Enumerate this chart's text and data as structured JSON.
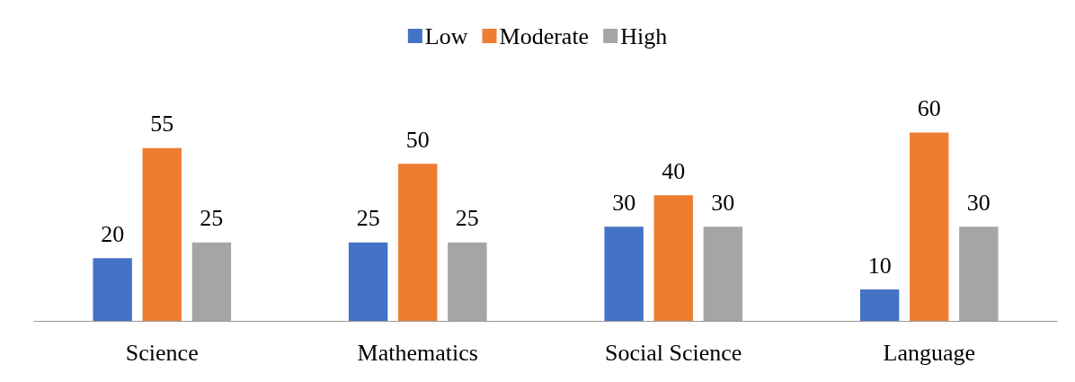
{
  "chart_data": {
    "type": "bar",
    "categories": [
      "Science",
      "Mathematics",
      "Social Science",
      "Language"
    ],
    "series": [
      {
        "name": "Low",
        "color": "#4472c4",
        "values": [
          20,
          25,
          30,
          10
        ]
      },
      {
        "name": "Moderate",
        "color": "#ed7d31",
        "values": [
          55,
          50,
          40,
          60
        ]
      },
      {
        "name": "High",
        "color": "#a5a5a5",
        "values": [
          25,
          25,
          30,
          30
        ]
      }
    ],
    "data_labels": true,
    "legend": "top"
  }
}
